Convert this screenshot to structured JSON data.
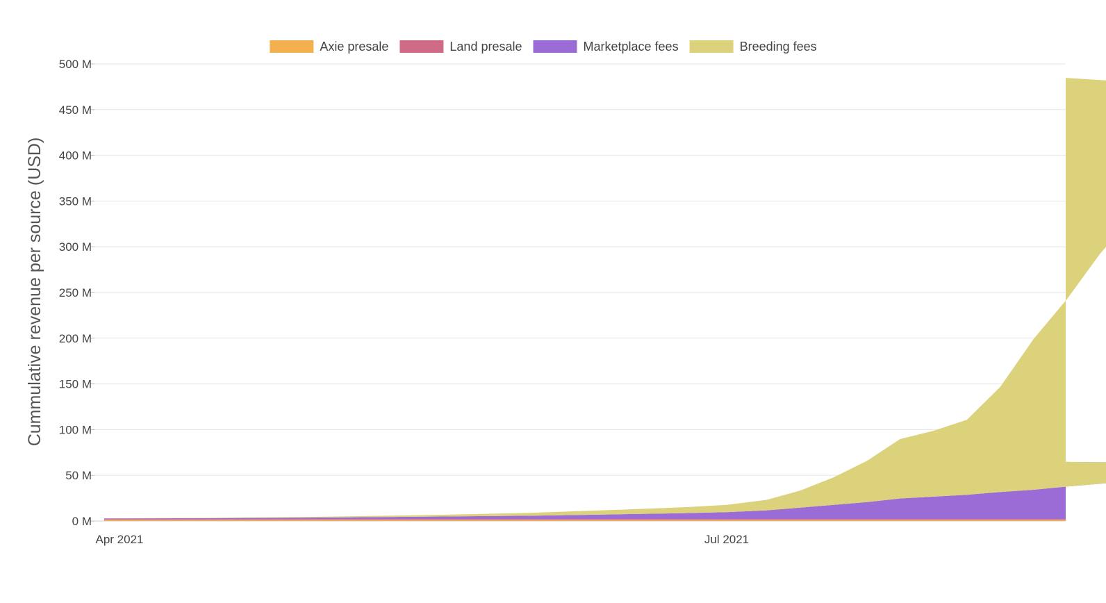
{
  "chart_data": {
    "type": "area",
    "stacked": true,
    "ylabel": "Cummulative revenue per source (USD)",
    "xlabel": "",
    "x_tick_labels": [
      "Apr 2021",
      "Jul 2021"
    ],
    "x_ticks_dates": [
      "2021-04-01",
      "2021-07-01"
    ],
    "y_tick_labels": [
      "0 M",
      "50 M",
      "100 M",
      "150 M",
      "200 M",
      "250 M",
      "300 M",
      "350 M",
      "400 M",
      "450 M",
      "500 M"
    ],
    "ylim": [
      0,
      500
    ],
    "y_unit": "M USD",
    "grid": true,
    "legend_position": "top",
    "series": [
      {
        "name": "Axie presale",
        "color": "#f2b04f"
      },
      {
        "name": "Land presale",
        "color": "#cf6b87"
      },
      {
        "name": "Marketplace fees",
        "color": "#9b6cd6"
      },
      {
        "name": "Breeding fees",
        "color": "#dbd27b"
      }
    ],
    "x": [
      "2021-04-01",
      "2021-04-15",
      "2021-05-01",
      "2021-05-15",
      "2021-06-01",
      "2021-06-15",
      "2021-06-25",
      "2021-07-01",
      "2021-07-07",
      "2021-07-12",
      "2021-07-17",
      "2021-07-22",
      "2021-07-27",
      "2021-08-01",
      "2021-08-06",
      "2021-08-11",
      "2021-08-16",
      "2021-08-21",
      "2021-08-26",
      "2021-09-01",
      "2021-09-06",
      "2021-09-11",
      "2021-09-16",
      "2021-09-21",
      "2021-09-26",
      "2021-09-30"
    ],
    "values": {
      "Axie presale": [
        1.4,
        1.4,
        1.4,
        1.4,
        1.4,
        1.4,
        1.4,
        1.4,
        1.4,
        1.4,
        1.4,
        1.4,
        1.4,
        1.4,
        1.4,
        1.4,
        1.4,
        1.4,
        1.4,
        1.4,
        1.4,
        1.4,
        1.4,
        1.4,
        1.4,
        1.4
      ],
      "Land presale": [
        0.8,
        0.8,
        0.8,
        0.8,
        0.8,
        0.8,
        0.8,
        0.8,
        0.8,
        0.8,
        0.8,
        0.8,
        0.8,
        0.8,
        0.8,
        0.8,
        0.8,
        0.8,
        0.8,
        0.8,
        0.8,
        0.8,
        0.8,
        0.8,
        0.8,
        0.8
      ],
      "Marketplace fees": [
        0.6,
        1.0,
        1.6,
        2.4,
        3.6,
        5.2,
        6.5,
        7.5,
        9.5,
        12.5,
        15.5,
        18.5,
        22.5,
        24.5,
        26.5,
        29.5,
        32,
        35.5,
        38.5,
        42.5,
        46.5,
        50.5,
        54,
        57,
        60,
        62.5
      ],
      "Breeding fees": [
        0.2,
        0.3,
        0.8,
        1.6,
        3.0,
        5.0,
        6.5,
        8.0,
        11.5,
        18.5,
        30,
        45,
        65,
        72,
        82,
        115,
        165,
        205,
        252,
        298,
        330,
        360,
        373,
        388,
        406,
        420
      ]
    }
  }
}
